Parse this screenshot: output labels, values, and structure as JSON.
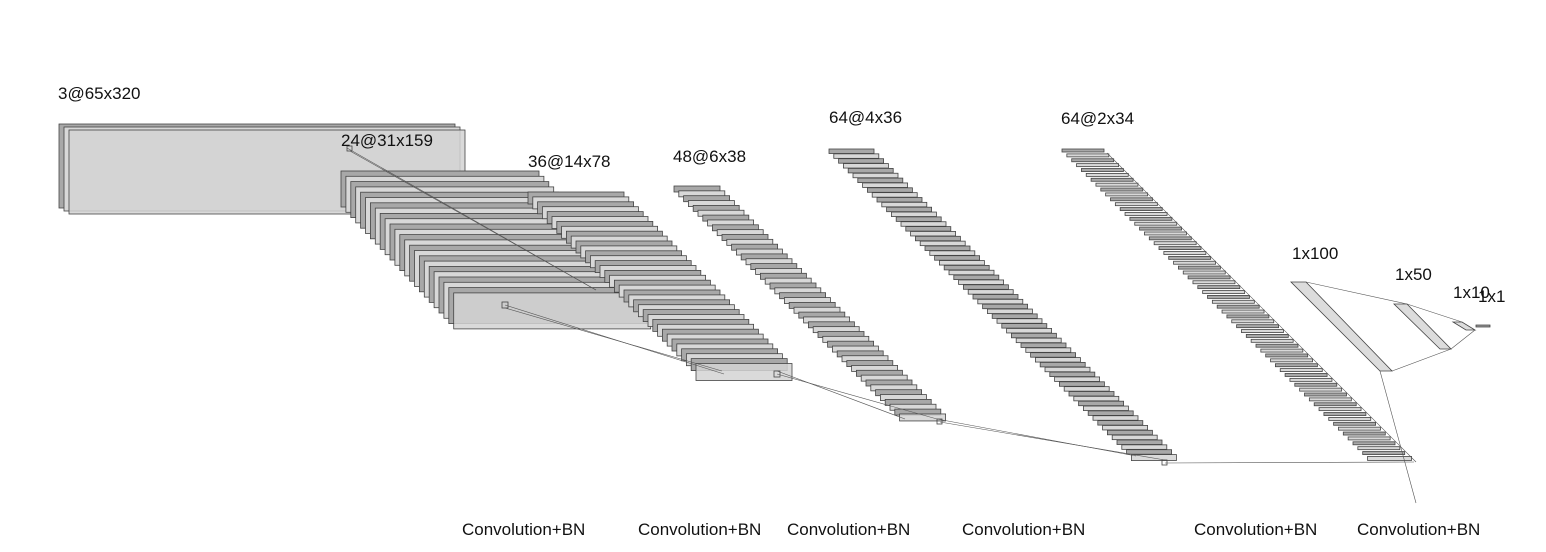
{
  "diagram": {
    "layers": [
      {
        "label": "3@65x320"
      },
      {
        "label": "24@31x159"
      },
      {
        "label": "36@14x78"
      },
      {
        "label": "48@6x38"
      },
      {
        "label": "64@4x36"
      },
      {
        "label": "64@2x34"
      },
      {
        "label": "1x100"
      },
      {
        "label": "1x50"
      },
      {
        "label": "1x10"
      },
      {
        "label": "1x1"
      }
    ],
    "operations": [
      {
        "label": "Convolution+BN"
      },
      {
        "label": "Convolution+BN"
      },
      {
        "label": "Convolution+BN"
      },
      {
        "label": "Convolution+BN"
      },
      {
        "label": "Convolution+BN"
      },
      {
        "label": "Convolution+BN"
      }
    ],
    "colors": {
      "map_dark": "#a8a8a8",
      "map_light": "#d3d3d3",
      "stroke": "#444444",
      "text": "#111111"
    }
  }
}
